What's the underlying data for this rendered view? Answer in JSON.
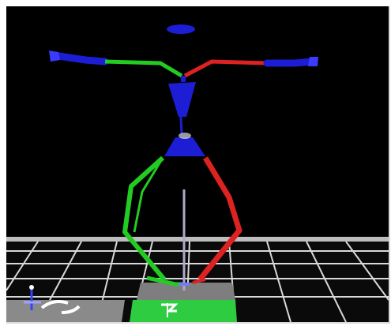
{
  "viewport": {
    "background_color": "#000000",
    "floor_line_color": "#e6e6e6",
    "selected_tile_color": "#2ecc40"
  },
  "skeleton": {
    "joint_color": "#1d1dd6",
    "left_limb_color": "#22cc22",
    "right_limb_color": "#dd2222",
    "spine_color": "#1d1dd6",
    "root_marker_color": "#b0a8c8"
  },
  "icons": {
    "gizmo": "axis-gizmo-icon",
    "rotate": "rotate-arrow-icon"
  }
}
